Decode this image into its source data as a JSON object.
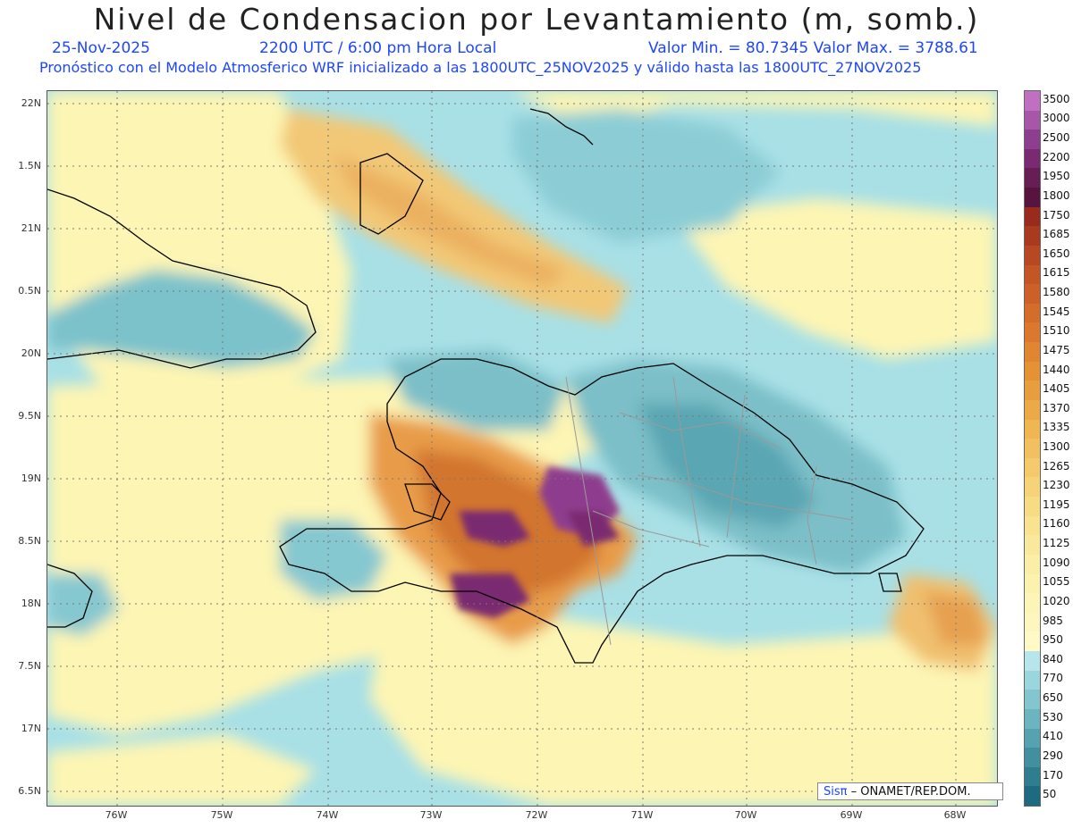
{
  "title": "Nivel de Condensacion por Levantamiento (m, somb.)",
  "date": "25-Nov-2025",
  "time": "2200 UTC / 6:00 pm Hora Local",
  "value_range": "Valor Min. = 80.7345  Valor Max. = 3788.61",
  "forecast_note": "Pronóstico con el Modelo Atmosferico WRF inicializado a las 1800UTC_25NOV2025 y válido hasta las  1800UTC_27NOV2025",
  "lat_labels": [
    "22N",
    "1.5N",
    "21N",
    "0.5N",
    "20N",
    "9.5N",
    "19N",
    "8.5N",
    "18N",
    "7.5N",
    "17N",
    "6.5N"
  ],
  "lon_labels": [
    "76W",
    "75W",
    "74W",
    "73W",
    "72W",
    "71W",
    "70W",
    "69W",
    "68W"
  ],
  "colorbar": {
    "levels": [
      "3500",
      "3000",
      "2500",
      "2200",
      "1950",
      "1800",
      "1750",
      "1685",
      "1650",
      "1615",
      "1580",
      "1545",
      "1510",
      "1475",
      "1440",
      "1405",
      "1370",
      "1335",
      "1300",
      "1265",
      "1230",
      "1195",
      "1160",
      "1125",
      "1090",
      "1055",
      "1020",
      "985",
      "950",
      "840",
      "770",
      "650",
      "530",
      "410",
      "290",
      "170",
      "50"
    ],
    "colors": [
      "#c070c0",
      "#a856a8",
      "#8e3e8e",
      "#7a2a70",
      "#671e55",
      "#56143f",
      "#992b1c",
      "#a93a1e",
      "#b74822",
      "#c45524",
      "#cc6026",
      "#d46c2a",
      "#dc782e",
      "#e08530",
      "#e49234",
      "#e89e3c",
      "#ecaa46",
      "#efb652",
      "#f2c05e",
      "#f4ca6a",
      "#f6d376",
      "#f8dc84",
      "#f9e390",
      "#fae99c",
      "#fbeea6",
      "#fcf2b0",
      "#fdf5b8",
      "#fdf7bf",
      "#fef9c6",
      "#b6e6ec",
      "#9cd6dd",
      "#84c6cf",
      "#6cb4c0",
      "#56a2b0",
      "#428fa0",
      "#307d90",
      "#1e6a80"
    ]
  },
  "credit": {
    "brand": "Sisπ",
    "text": "– ONAMET/REP.DOM."
  }
}
